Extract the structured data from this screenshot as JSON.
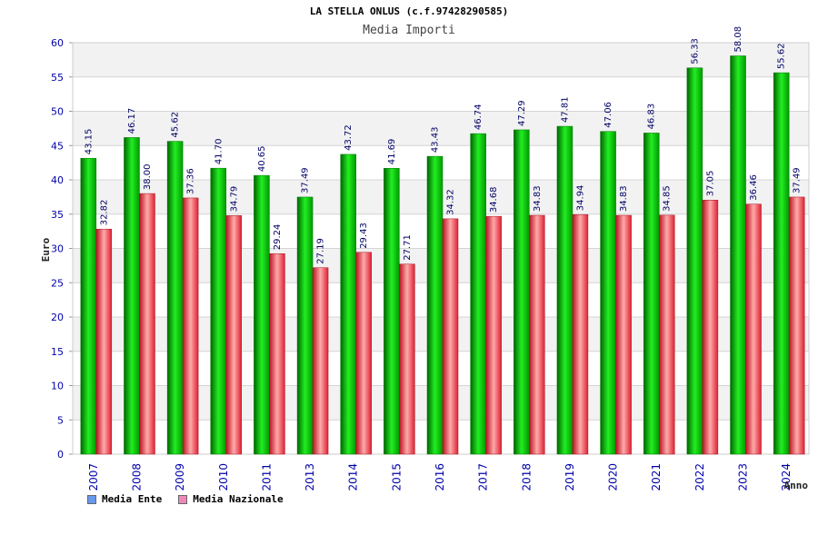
{
  "chart_data": {
    "type": "bar",
    "title": "LA STELLA ONLUS (c.f.97428290585)",
    "subtitle": "Media Importi",
    "xlabel": "Anno",
    "ylabel": "Euro",
    "ylim": [
      0,
      60
    ],
    "yticks": [
      0,
      5,
      10,
      15,
      20,
      25,
      30,
      35,
      40,
      45,
      50,
      55,
      60
    ],
    "categories": [
      "2007",
      "2008",
      "2009",
      "2010",
      "2011",
      "2013",
      "2014",
      "2015",
      "2016",
      "2017",
      "2018",
      "2019",
      "2020",
      "2021",
      "2022",
      "2023",
      "2024"
    ],
    "series": [
      {
        "name": "Media Ente",
        "color": "#00aa00",
        "legend_color": "#6699ee",
        "values": [
          43.15,
          46.17,
          45.62,
          41.7,
          40.65,
          37.49,
          43.72,
          41.69,
          43.43,
          46.74,
          47.29,
          47.81,
          47.06,
          46.83,
          56.33,
          58.08,
          55.62
        ],
        "labels": [
          "43.15",
          "46.17",
          "45.62",
          "41.70",
          "40.65",
          "37.49",
          "43.72",
          "41.69",
          "43.43",
          "46.74",
          "47.29",
          "47.81",
          "47.06",
          "46.83",
          "56.33",
          "58.08",
          "55.62"
        ]
      },
      {
        "name": "Media Nazionale",
        "color": "#ee3344",
        "legend_color": "#ee88bb",
        "values": [
          32.82,
          38.0,
          37.36,
          34.79,
          29.24,
          27.19,
          29.43,
          27.71,
          34.32,
          34.68,
          34.83,
          34.94,
          34.83,
          34.85,
          37.05,
          36.46,
          37.49
        ],
        "labels": [
          "32.82",
          "38.00",
          "37.36",
          "34.79",
          "29.24",
          "27.19",
          "29.43",
          "27.71",
          "34.32",
          "34.68",
          "34.83",
          "34.94",
          "34.83",
          "34.85",
          "37.05",
          "36.46",
          "37.49"
        ]
      }
    ]
  }
}
